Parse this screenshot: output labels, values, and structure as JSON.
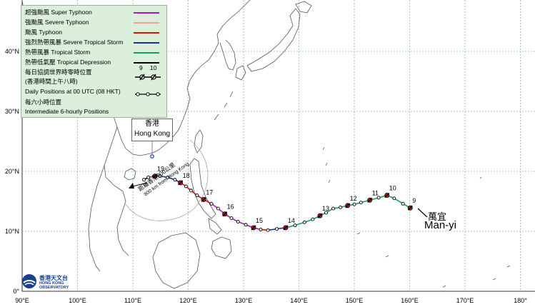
{
  "legend": {
    "super_typhoon": "超強颱風 Super Typhoon",
    "severe_typhoon": "強颱風 Severe Typhoon",
    "typhoon": "颱風 Typhoon",
    "severe_tropical_storm": "強烈熱帶風暴 Severe Tropical Storm",
    "tropical_storm": "熱帶風暴 Tropical Storm",
    "tropical_depression": "熱帶低氣壓 Tropical Depression",
    "daily_zh": "每日協調世界時零時位置",
    "daily_zh2": "(香港時間上午八時)",
    "daily_en": "Daily Positions at 00 UTC (08 HKT)",
    "six_hourly_zh": "每六小時位置",
    "six_hourly_en": "Intermediate 6-hourly Positions",
    "example_days": [
      "9",
      "10"
    ],
    "colors": {
      "super_typhoon": "#a020c0",
      "severe_typhoon": "#f0a0a0",
      "typhoon": "#e01010",
      "severe_tropical_storm": "#1030c0",
      "tropical_storm": "#10a060",
      "tropical_depression": "#000000"
    }
  },
  "hong_kong_label": {
    "zh": "香港",
    "en": "Hong Kong"
  },
  "distance_label": {
    "zh": "距離香港800公里",
    "en": "800 km from Hong Kong"
  },
  "storm_name": {
    "zh": "萬宜",
    "en": "Man-yi"
  },
  "observatory": {
    "zh": "香港天文台",
    "en": "HONG KONG OBSERVATORY"
  },
  "axes": {
    "lon_labels": [
      "90°E",
      "100°E",
      "110°E",
      "120°E",
      "130°E",
      "140°E",
      "150°E",
      "160°E",
      "170°E",
      "180°"
    ],
    "lat_labels": [
      "0°",
      "10°N",
      "20°N",
      "30°N",
      "40°N"
    ]
  },
  "track": {
    "points": [
      {
        "lon": 160.1,
        "lat": 13.9,
        "cat": "tropical_depression"
      },
      {
        "lon": 158.8,
        "lat": 14.6,
        "cat": "tropical_storm"
      },
      {
        "lon": 157.2,
        "lat": 15.5,
        "cat": "tropical_storm"
      },
      {
        "lon": 155.9,
        "lat": 16.0,
        "cat": "tropical_storm"
      },
      {
        "lon": 154.4,
        "lat": 15.6,
        "cat": "tropical_storm"
      },
      {
        "lon": 152.8,
        "lat": 15.2,
        "cat": "tropical_storm"
      },
      {
        "lon": 151.2,
        "lat": 14.8,
        "cat": "tropical_storm"
      },
      {
        "lon": 150.0,
        "lat": 14.5,
        "cat": "tropical_storm"
      },
      {
        "lon": 148.8,
        "lat": 14.3,
        "cat": "tropical_storm"
      },
      {
        "lon": 147.5,
        "lat": 14.0,
        "cat": "tropical_storm"
      },
      {
        "lon": 146.2,
        "lat": 13.8,
        "cat": "tropical_storm"
      },
      {
        "lon": 144.9,
        "lat": 13.1,
        "cat": "tropical_storm"
      },
      {
        "lon": 143.8,
        "lat": 12.6,
        "cat": "tropical_storm"
      },
      {
        "lon": 142.5,
        "lat": 12.0,
        "cat": "tropical_storm"
      },
      {
        "lon": 141.0,
        "lat": 11.5,
        "cat": "tropical_storm"
      },
      {
        "lon": 139.3,
        "lat": 11.0,
        "cat": "tropical_storm"
      },
      {
        "lon": 137.6,
        "lat": 10.6,
        "cat": "tropical_storm"
      },
      {
        "lon": 136.0,
        "lat": 10.4,
        "cat": "severe_tropical_storm"
      },
      {
        "lon": 134.4,
        "lat": 10.2,
        "cat": "severe_tropical_storm"
      },
      {
        "lon": 133.1,
        "lat": 10.3,
        "cat": "typhoon"
      },
      {
        "lon": 131.8,
        "lat": 10.6,
        "cat": "super_typhoon"
      },
      {
        "lon": 130.4,
        "lat": 11.1,
        "cat": "super_typhoon"
      },
      {
        "lon": 129.0,
        "lat": 11.6,
        "cat": "super_typhoon"
      },
      {
        "lon": 127.8,
        "lat": 12.2,
        "cat": "super_typhoon"
      },
      {
        "lon": 126.6,
        "lat": 12.9,
        "cat": "super_typhoon"
      },
      {
        "lon": 125.4,
        "lat": 13.8,
        "cat": "super_typhoon"
      },
      {
        "lon": 124.2,
        "lat": 14.6,
        "cat": "super_typhoon"
      },
      {
        "lon": 122.8,
        "lat": 15.3,
        "cat": "typhoon"
      },
      {
        "lon": 121.6,
        "lat": 16.0,
        "cat": "typhoon"
      },
      {
        "lon": 120.5,
        "lat": 16.8,
        "cat": "typhoon"
      },
      {
        "lon": 119.6,
        "lat": 17.5,
        "cat": "typhoon"
      },
      {
        "lon": 118.6,
        "lat": 18.1,
        "cat": "typhoon"
      },
      {
        "lon": 117.6,
        "lat": 18.6,
        "cat": "severe_tropical_storm"
      },
      {
        "lon": 116.3,
        "lat": 19.0,
        "cat": "severe_tropical_storm"
      },
      {
        "lon": 114.9,
        "lat": 19.2,
        "cat": "severe_tropical_storm"
      },
      {
        "lon": 113.8,
        "lat": 19.2,
        "cat": "tropical_storm"
      },
      {
        "lon": 112.8,
        "lat": 19.0,
        "cat": "tropical_storm"
      },
      {
        "lon": 112.0,
        "lat": 18.6,
        "cat": "tropical_depression"
      }
    ],
    "daily": [
      {
        "day": "9",
        "lon": 160.1,
        "lat": 13.9
      },
      {
        "day": "10",
        "lon": 155.9,
        "lat": 16.0
      },
      {
        "day": "11",
        "lon": 152.8,
        "lat": 15.2
      },
      {
        "day": "12",
        "lon": 148.8,
        "lat": 14.3
      },
      {
        "day": "13",
        "lon": 143.8,
        "lat": 12.6
      },
      {
        "day": "14",
        "lon": 137.6,
        "lat": 10.6
      },
      {
        "day": "15",
        "lon": 131.8,
        "lat": 10.6
      },
      {
        "day": "16",
        "lon": 126.6,
        "lat": 12.9
      },
      {
        "day": "17",
        "lon": 122.8,
        "lat": 15.3
      },
      {
        "day": "18",
        "lon": 118.6,
        "lat": 18.1
      },
      {
        "day": "19",
        "lon": 114.0,
        "lat": 19.2
      }
    ]
  }
}
